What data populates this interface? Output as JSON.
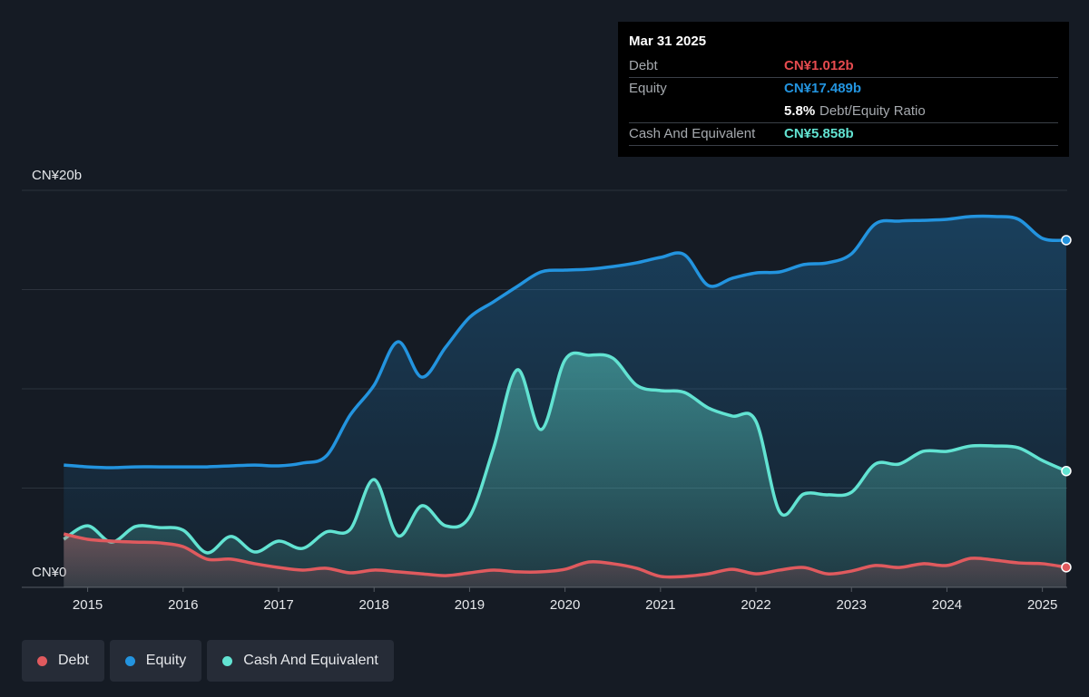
{
  "chart_data": {
    "type": "line",
    "x": [
      2014.75,
      2015,
      2015.25,
      2015.5,
      2015.75,
      2016,
      2016.25,
      2016.5,
      2016.75,
      2017,
      2017.25,
      2017.5,
      2017.75,
      2018,
      2018.25,
      2018.5,
      2018.75,
      2019,
      2019.25,
      2019.5,
      2019.75,
      2020,
      2020.25,
      2020.5,
      2020.75,
      2021,
      2021.25,
      2021.5,
      2021.75,
      2022,
      2022.25,
      2022.5,
      2022.75,
      2023,
      2023.25,
      2023.5,
      2023.75,
      2024,
      2024.25,
      2024.5,
      2024.75,
      2025,
      2025.25
    ],
    "series": [
      {
        "name": "Debt",
        "color": "#e05a5e",
        "values": [
          2.69,
          2.42,
          2.33,
          2.28,
          2.24,
          2.05,
          1.42,
          1.42,
          1.19,
          1.0,
          0.87,
          0.96,
          0.73,
          0.87,
          0.78,
          0.68,
          0.59,
          0.73,
          0.87,
          0.78,
          0.78,
          0.91,
          1.28,
          1.19,
          0.96,
          0.55,
          0.55,
          0.68,
          0.91,
          0.68,
          0.87,
          1.0,
          0.68,
          0.82,
          1.1,
          1.0,
          1.19,
          1.1,
          1.46,
          1.37,
          1.23,
          1.19,
          1.012
        ]
      },
      {
        "name": "Equity",
        "color": "#2394df",
        "values": [
          6.16,
          6.07,
          6.03,
          6.07,
          6.07,
          6.07,
          6.07,
          6.12,
          6.16,
          6.12,
          6.26,
          6.62,
          8.68,
          10.18,
          12.37,
          10.59,
          12.1,
          13.6,
          14.38,
          15.16,
          15.89,
          15.98,
          16.03,
          16.16,
          16.35,
          16.62,
          16.76,
          15.21,
          15.57,
          15.84,
          15.89,
          16.26,
          16.35,
          16.8,
          18.31,
          18.45,
          18.49,
          18.54,
          18.68,
          18.68,
          18.54,
          17.58,
          17.489
        ]
      },
      {
        "name": "Cash And Equivalent",
        "color": "#62e3d2",
        "values": [
          2.42,
          3.1,
          2.28,
          3.06,
          3.01,
          2.88,
          1.74,
          2.56,
          1.78,
          2.33,
          1.96,
          2.79,
          2.92,
          5.43,
          2.6,
          4.11,
          3.1,
          3.56,
          6.99,
          10.96,
          7.95,
          11.46,
          11.69,
          11.55,
          10.18,
          9.91,
          9.82,
          9.04,
          8.63,
          8.36,
          3.79,
          4.7,
          4.66,
          4.79,
          6.21,
          6.21,
          6.85,
          6.85,
          7.12,
          7.12,
          7.03,
          6.39,
          5.858
        ]
      }
    ],
    "xlim": [
      2014.31,
      2025.26
    ],
    "xticks": [
      2015,
      2016,
      2017,
      2018,
      2019,
      2020,
      2021,
      2022,
      2023,
      2024,
      2025
    ],
    "ylim": [
      0,
      20
    ],
    "yticks": [
      {
        "value": 0,
        "label": "CN¥0"
      },
      {
        "value": 20,
        "label": "CN¥20b"
      }
    ],
    "ygrid": [
      0,
      5,
      10,
      15,
      20
    ],
    "tooltip": {
      "date": "Mar 31 2025",
      "rows": [
        {
          "label": "Debt",
          "value": "CN¥1.012b"
        },
        {
          "label": "Equity",
          "value": "CN¥17.489b"
        },
        {
          "value": "5.8%",
          "note": "Debt/Equity Ratio"
        },
        {
          "label": "Cash And Equivalent",
          "value": "CN¥5.858b"
        }
      ]
    }
  }
}
